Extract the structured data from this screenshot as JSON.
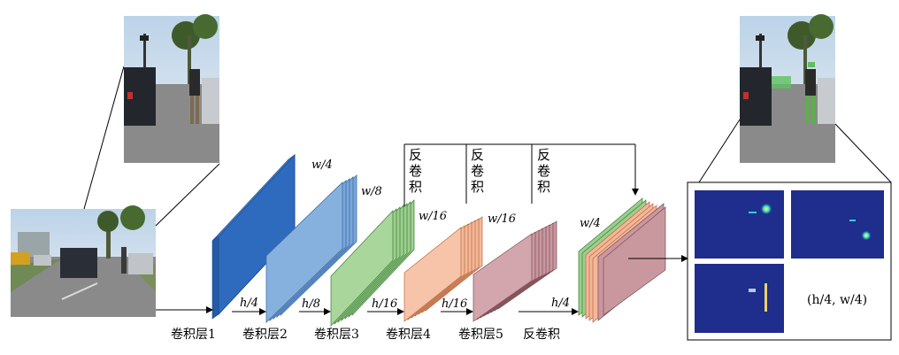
{
  "layer_labels": [
    "卷积层1",
    "卷积层2",
    "卷积层3",
    "卷积层4",
    "卷积层5",
    "反卷积"
  ],
  "feature_widths": [
    "w/4",
    "w/8",
    "w/16",
    "w/16",
    "w/4"
  ],
  "feature_heights": [
    "h/4",
    "h/8",
    "h/16",
    "h/16",
    "h/4"
  ],
  "deconv_branch_label": [
    "反",
    "卷",
    "积"
  ],
  "output_size_label": "(h/4, w/4)",
  "colors": {
    "conv1": "#2e6bbf",
    "conv2": "#7aa6d9",
    "conv3": "#9ccf8e",
    "conv4": "#f4b799",
    "conv5": "#c9989f",
    "heatmap_bg": "#1f2d8c"
  }
}
